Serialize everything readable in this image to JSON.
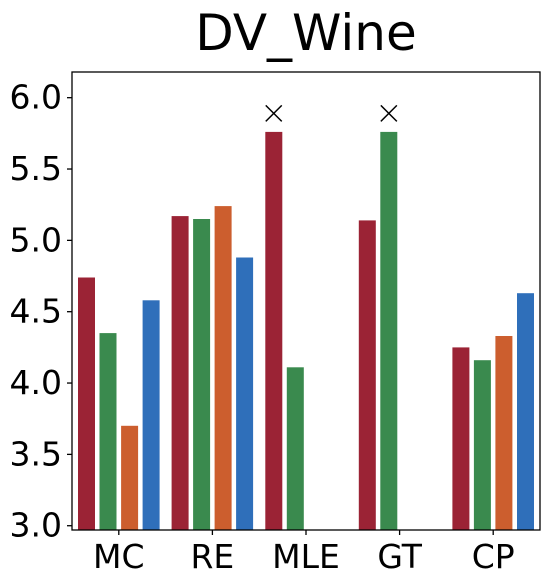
{
  "chart_data": {
    "type": "bar",
    "title": "DV_Wine",
    "categories": [
      "MC",
      "RE",
      "MLE",
      "GT",
      "CP"
    ],
    "ylim": [
      2.97,
      6.18
    ],
    "yticks": [
      "3.0",
      "3.5",
      "4.0",
      "4.5",
      "5.0",
      "5.5",
      "6.0"
    ],
    "series": [
      {
        "color": "#9b2335",
        "values": [
          4.74,
          5.17,
          5.76,
          5.14,
          4.25
        ]
      },
      {
        "color": "#3a8a4e",
        "values": [
          4.35,
          5.15,
          4.11,
          5.76,
          4.16
        ]
      },
      {
        "color": "#cc5e2e",
        "values": [
          3.7,
          5.24,
          null,
          null,
          4.33
        ]
      },
      {
        "color": "#2f6fba",
        "values": [
          4.58,
          4.88,
          null,
          null,
          4.63
        ]
      }
    ],
    "markers": [
      {
        "category": "MLE",
        "series_index": 0,
        "symbol": "x",
        "y": 5.89
      },
      {
        "category": "GT",
        "series_index": 1,
        "symbol": "x",
        "y": 5.89
      }
    ]
  }
}
